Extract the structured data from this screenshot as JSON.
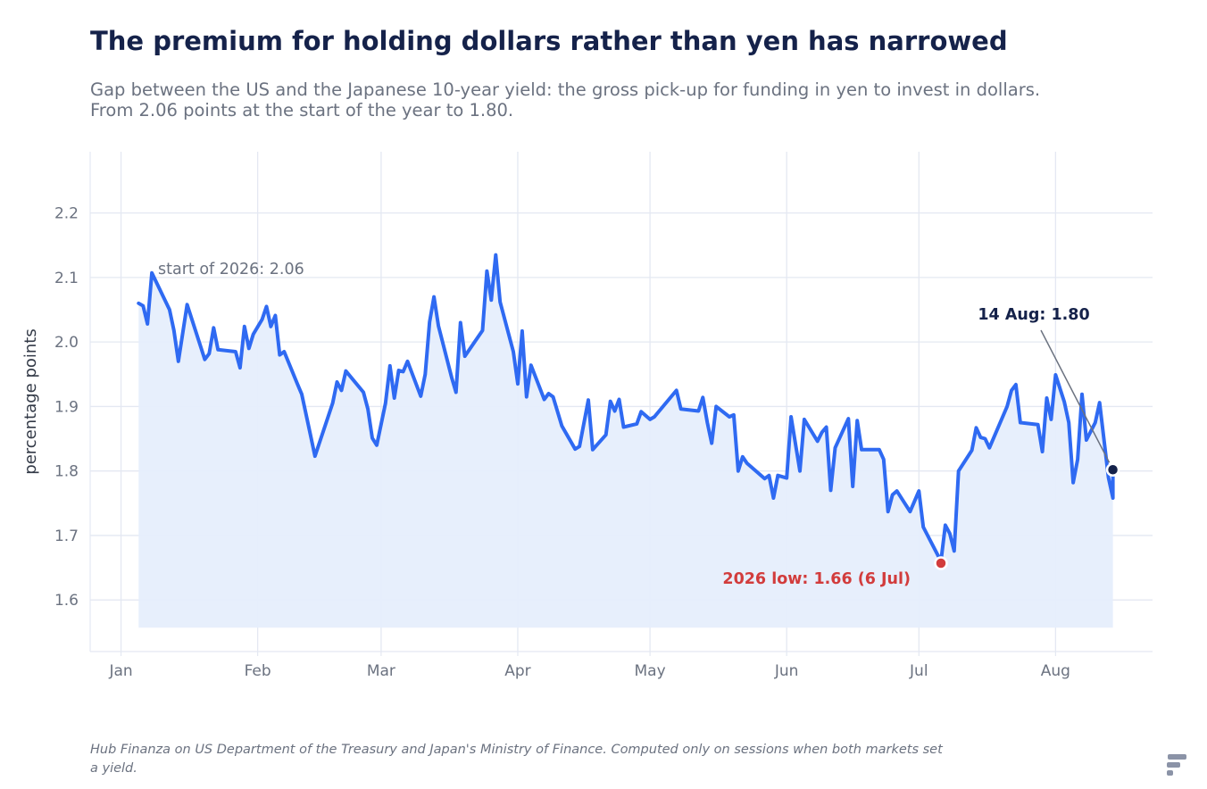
{
  "header": {
    "title": "The premium for holding dollars rather than yen has narrowed",
    "subtitle": "Gap between the US and the Japanese 10-year yield: the gross pick-up for funding in yen to invest in dollars. From 2.06 points at the start of the year to 1.80."
  },
  "footer": {
    "source_note": "Hub Finanza on US Department of the Treasury and Japan's Ministry of Finance. Computed only on sessions when both markets set a yield."
  },
  "colors": {
    "line": "#2f6af2",
    "fill": "#e6eefc",
    "title": "#15224a",
    "muted": "#6b7280",
    "low": "#d23c3c",
    "last": "#15224a",
    "grid": "#e4e8f2"
  },
  "logo_icon": "brand-logo-icon",
  "chart_data": {
    "type": "area",
    "ylabel": "percentage points",
    "xlabel": "",
    "ylim": [
      1.52,
      2.295
    ],
    "xlim": [
      "2025-12-25",
      "2026-08-23"
    ],
    "grid": true,
    "yticks": [
      1.6,
      1.7,
      1.8,
      1.9,
      2.0,
      2.1,
      2.2
    ],
    "xticks": [
      {
        "date": "2026-01-01",
        "label": "Jan"
      },
      {
        "date": "2026-02-01",
        "label": "Feb"
      },
      {
        "date": "2026-03-01",
        "label": "Mar"
      },
      {
        "date": "2026-04-01",
        "label": "Apr"
      },
      {
        "date": "2026-05-01",
        "label": "May"
      },
      {
        "date": "2026-06-01",
        "label": "Jun"
      },
      {
        "date": "2026-07-01",
        "label": "Jul"
      },
      {
        "date": "2026-08-01",
        "label": "Aug"
      }
    ],
    "series": [
      {
        "points": [
          [
            "2026-01-05",
            2.06
          ],
          [
            "2026-01-06",
            2.056
          ],
          [
            "2026-01-07",
            2.028
          ],
          [
            "2026-01-08",
            2.107
          ],
          [
            "2026-01-12",
            2.05
          ],
          [
            "2026-01-13",
            2.018
          ],
          [
            "2026-01-14",
            1.97
          ],
          [
            "2026-01-16",
            2.058
          ],
          [
            "2026-01-20",
            1.973
          ],
          [
            "2026-01-21",
            1.982
          ],
          [
            "2026-01-22",
            2.022
          ],
          [
            "2026-01-23",
            1.988
          ],
          [
            "2026-01-27",
            1.985
          ],
          [
            "2026-01-28",
            1.96
          ],
          [
            "2026-01-29",
            2.024
          ],
          [
            "2026-01-30",
            1.99
          ],
          [
            "2026-01-31",
            2.012
          ],
          [
            "2026-02-02",
            2.035
          ],
          [
            "2026-02-03",
            2.055
          ],
          [
            "2026-02-04",
            2.024
          ],
          [
            "2026-02-05",
            2.041
          ],
          [
            "2026-02-06",
            1.98
          ],
          [
            "2026-02-07",
            1.985
          ],
          [
            "2026-02-10",
            1.935
          ],
          [
            "2026-02-11",
            1.919
          ],
          [
            "2026-02-13",
            1.855
          ],
          [
            "2026-02-14",
            1.823
          ],
          [
            "2026-02-18",
            1.905
          ],
          [
            "2026-02-19",
            1.938
          ],
          [
            "2026-02-20",
            1.925
          ],
          [
            "2026-02-21",
            1.955
          ],
          [
            "2026-02-25",
            1.922
          ],
          [
            "2026-02-26",
            1.896
          ],
          [
            "2026-02-27",
            1.851
          ],
          [
            "2026-02-28",
            1.84
          ],
          [
            "2026-03-02",
            1.905
          ],
          [
            "2026-03-03",
            1.963
          ],
          [
            "2026-03-04",
            1.913
          ],
          [
            "2026-03-05",
            1.956
          ],
          [
            "2026-03-06",
            1.954
          ],
          [
            "2026-03-07",
            1.97
          ],
          [
            "2026-03-10",
            1.916
          ],
          [
            "2026-03-11",
            1.95
          ],
          [
            "2026-03-12",
            2.031
          ],
          [
            "2026-03-13",
            2.07
          ],
          [
            "2026-03-14",
            2.025
          ],
          [
            "2026-03-17",
            1.945
          ],
          [
            "2026-03-18",
            1.922
          ],
          [
            "2026-03-19",
            2.03
          ],
          [
            "2026-03-20",
            1.978
          ],
          [
            "2026-03-24",
            2.018
          ],
          [
            "2026-03-25",
            2.11
          ],
          [
            "2026-03-26",
            2.065
          ],
          [
            "2026-03-27",
            2.135
          ],
          [
            "2026-03-28",
            2.062
          ],
          [
            "2026-03-31",
            1.985
          ],
          [
            "2026-04-01",
            1.935
          ],
          [
            "2026-04-02",
            2.017
          ],
          [
            "2026-04-03",
            1.915
          ],
          [
            "2026-04-04",
            1.964
          ],
          [
            "2026-04-07",
            1.911
          ],
          [
            "2026-04-08",
            1.92
          ],
          [
            "2026-04-09",
            1.915
          ],
          [
            "2026-04-11",
            1.87
          ],
          [
            "2026-04-14",
            1.834
          ],
          [
            "2026-04-15",
            1.838
          ],
          [
            "2026-04-17",
            1.91
          ],
          [
            "2026-04-18",
            1.833
          ],
          [
            "2026-04-21",
            1.856
          ],
          [
            "2026-04-22",
            1.908
          ],
          [
            "2026-04-23",
            1.893
          ],
          [
            "2026-04-24",
            1.911
          ],
          [
            "2026-04-25",
            1.868
          ],
          [
            "2026-04-28",
            1.873
          ],
          [
            "2026-04-29",
            1.892
          ],
          [
            "2026-05-01",
            1.88
          ],
          [
            "2026-05-02",
            1.884
          ],
          [
            "2026-05-07",
            1.925
          ],
          [
            "2026-05-08",
            1.896
          ],
          [
            "2026-05-12",
            1.893
          ],
          [
            "2026-05-13",
            1.914
          ],
          [
            "2026-05-14",
            1.875
          ],
          [
            "2026-05-15",
            1.843
          ],
          [
            "2026-05-16",
            1.9
          ],
          [
            "2026-05-19",
            1.884
          ],
          [
            "2026-05-20",
            1.887
          ],
          [
            "2026-05-21",
            1.8
          ],
          [
            "2026-05-22",
            1.822
          ],
          [
            "2026-05-23",
            1.812
          ],
          [
            "2026-05-27",
            1.788
          ],
          [
            "2026-05-28",
            1.793
          ],
          [
            "2026-05-29",
            1.758
          ],
          [
            "2026-05-30",
            1.793
          ],
          [
            "2026-06-01",
            1.789
          ],
          [
            "2026-06-02",
            1.884
          ],
          [
            "2026-06-04",
            1.8
          ],
          [
            "2026-06-05",
            1.88
          ],
          [
            "2026-06-08",
            1.846
          ],
          [
            "2026-06-09",
            1.86
          ],
          [
            "2026-06-10",
            1.868
          ],
          [
            "2026-06-11",
            1.77
          ],
          [
            "2026-06-12",
            1.836
          ],
          [
            "2026-06-15",
            1.881
          ],
          [
            "2026-06-16",
            1.776
          ],
          [
            "2026-06-17",
            1.878
          ],
          [
            "2026-06-18",
            1.833
          ],
          [
            "2026-06-22",
            1.833
          ],
          [
            "2026-06-23",
            1.818
          ],
          [
            "2026-06-24",
            1.737
          ],
          [
            "2026-06-25",
            1.763
          ],
          [
            "2026-06-26",
            1.769
          ],
          [
            "2026-06-29",
            1.737
          ],
          [
            "2026-07-01",
            1.769
          ],
          [
            "2026-07-02",
            1.713
          ],
          [
            "2026-07-06",
            1.66
          ],
          [
            "2026-07-07",
            1.716
          ],
          [
            "2026-07-08",
            1.703
          ],
          [
            "2026-07-09",
            1.676
          ],
          [
            "2026-07-10",
            1.8
          ],
          [
            "2026-07-13",
            1.832
          ],
          [
            "2026-07-14",
            1.867
          ],
          [
            "2026-07-15",
            1.852
          ],
          [
            "2026-07-16",
            1.85
          ],
          [
            "2026-07-17",
            1.836
          ],
          [
            "2026-07-21",
            1.9
          ],
          [
            "2026-07-22",
            1.925
          ],
          [
            "2026-07-23",
            1.934
          ],
          [
            "2026-07-24",
            1.875
          ],
          [
            "2026-07-28",
            1.872
          ],
          [
            "2026-07-29",
            1.83
          ],
          [
            "2026-07-30",
            1.913
          ],
          [
            "2026-07-31",
            1.88
          ],
          [
            "2026-08-01",
            1.949
          ],
          [
            "2026-08-03",
            1.907
          ],
          [
            "2026-08-04",
            1.875
          ],
          [
            "2026-08-05",
            1.782
          ],
          [
            "2026-08-06",
            1.818
          ],
          [
            "2026-08-07",
            1.919
          ],
          [
            "2026-08-08",
            1.848
          ],
          [
            "2026-08-10",
            1.875
          ],
          [
            "2026-08-11",
            1.906
          ],
          [
            "2026-08-13",
            1.79
          ],
          [
            "2026-08-14",
            1.758
          ],
          [
            "2026-08-14",
            1.802
          ]
        ]
      }
    ],
    "annotations": [
      {
        "name": "start-annotation",
        "text": "start of 2026: 2.06",
        "date": "2026-01-05",
        "value": 2.06
      },
      {
        "name": "low-annotation",
        "text": "2026 low: 1.66 (6 Jul)",
        "date": "2026-07-06",
        "value": 1.657
      },
      {
        "name": "last-annotation",
        "text": "14 Aug: 1.80",
        "date": "2026-08-14",
        "value": 1.802
      }
    ]
  }
}
